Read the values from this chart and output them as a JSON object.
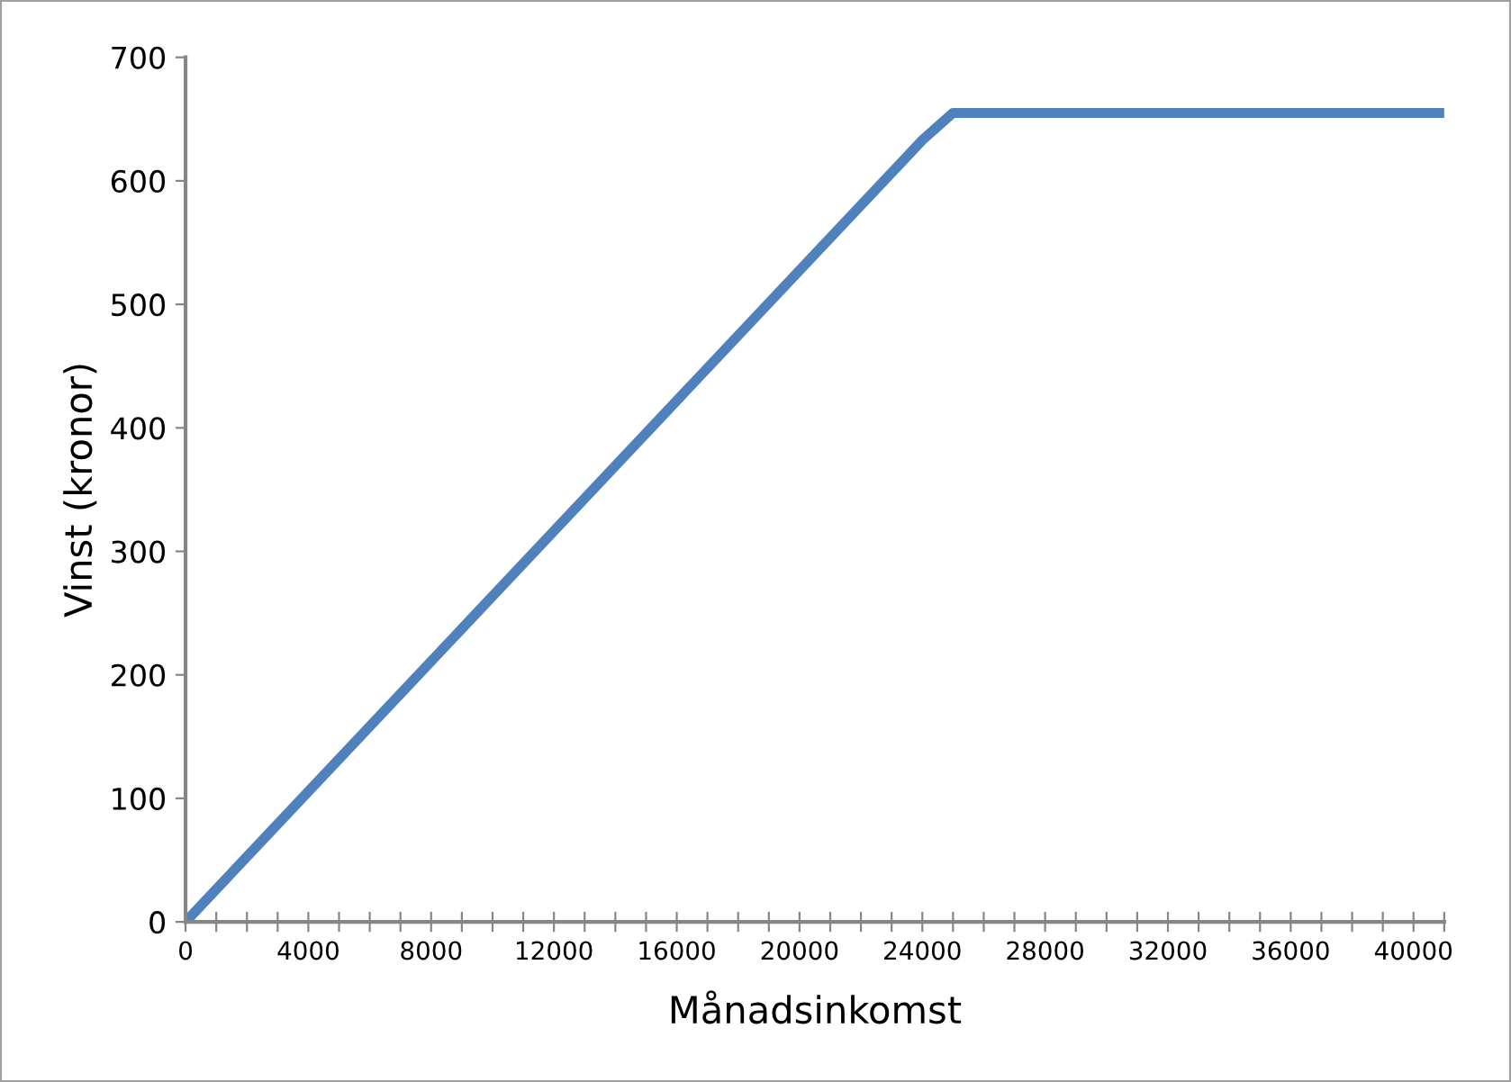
{
  "chart_data": {
    "type": "line",
    "xlabel": "Månadsinkomst",
    "ylabel": "Vinst (kronor)",
    "x": [
      0,
      24000,
      25000,
      41000
    ],
    "series": [
      {
        "color": "#4f81bd",
        "values": [
          0,
          633,
          655,
          655
        ]
      }
    ],
    "xlim": [
      0,
      41000
    ],
    "ylim": [
      0,
      700
    ],
    "xticks": [
      0,
      {
        "value": 1000,
        "label": null
      },
      {
        "value": 2000,
        "label": null
      },
      {
        "value": 3000,
        "label": null
      },
      4000,
      {
        "value": 5000,
        "label": null
      },
      {
        "value": 6000,
        "label": null
      },
      {
        "value": 7000,
        "label": null
      },
      8000,
      {
        "value": 9000,
        "label": null
      },
      {
        "value": 10000,
        "label": null
      },
      {
        "value": 11000,
        "label": null
      },
      12000,
      {
        "value": 13000,
        "label": null
      },
      {
        "value": 14000,
        "label": null
      },
      {
        "value": 15000,
        "label": null
      },
      16000,
      {
        "value": 17000,
        "label": null
      },
      {
        "value": 18000,
        "label": null
      },
      {
        "value": 19000,
        "label": null
      },
      20000,
      {
        "value": 21000,
        "label": null
      },
      {
        "value": 22000,
        "label": null
      },
      {
        "value": 23000,
        "label": null
      },
      24000,
      {
        "value": 25000,
        "label": null
      },
      {
        "value": 26000,
        "label": null
      },
      {
        "value": 27000,
        "label": null
      },
      28000,
      {
        "value": 29000,
        "label": null
      },
      {
        "value": 30000,
        "label": null
      },
      {
        "value": 31000,
        "label": null
      },
      32000,
      {
        "value": 33000,
        "label": null
      },
      {
        "value": 34000,
        "label": null
      },
      {
        "value": 35000,
        "label": null
      },
      36000,
      {
        "value": 37000,
        "label": null
      },
      {
        "value": 38000,
        "label": null
      },
      {
        "value": 39000,
        "label": null
      },
      40000,
      {
        "value": 41000,
        "label": null
      }
    ],
    "yticks": [
      0,
      100,
      200,
      300,
      400,
      500,
      600,
      700
    ],
    "grid": false,
    "legend": false,
    "marker": "none",
    "line_style": "solid"
  }
}
